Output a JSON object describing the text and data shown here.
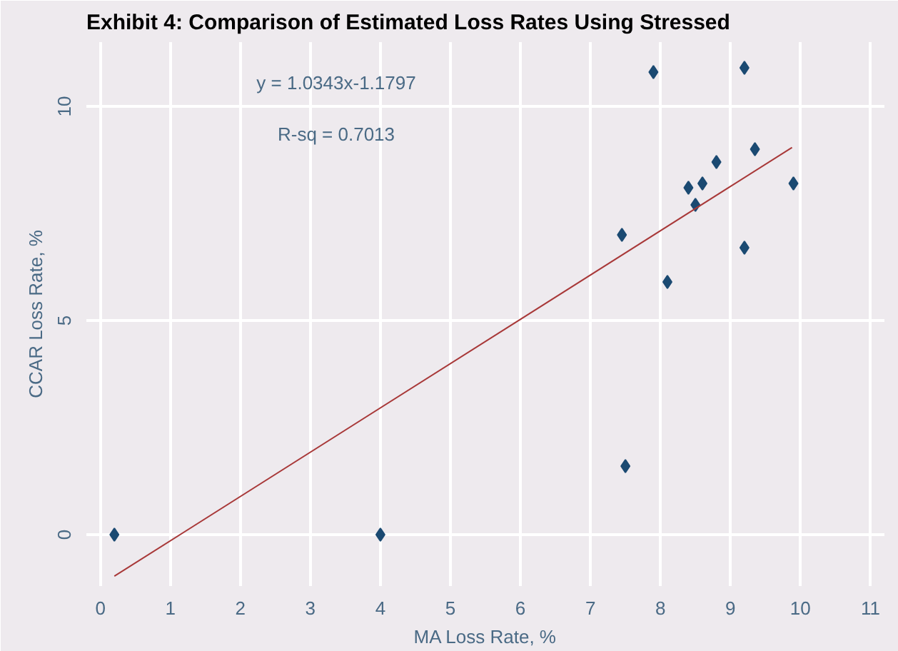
{
  "chart_data": {
    "type": "scatter",
    "title": "Exhibit 4: Comparison of Estimated Loss Rates Using Stressed",
    "xlabel": "MA Loss Rate, %",
    "ylabel": "CCAR Loss Rate, %",
    "xlim": [
      -0.2,
      11.2
    ],
    "ylim": [
      -1.2,
      11.5
    ],
    "xticks": [
      0,
      1,
      2,
      3,
      4,
      5,
      6,
      7,
      8,
      9,
      10,
      11
    ],
    "yticks": [
      0,
      5,
      10
    ],
    "grid": true,
    "series": [
      {
        "marker": "diamond",
        "color": "#1b4a72",
        "x": [
          0.2,
          4.0,
          7.9,
          9.2,
          9.35,
          8.8,
          8.4,
          8.6,
          8.5,
          9.9,
          7.45,
          8.1,
          9.2,
          7.5
        ],
        "values": [
          0,
          0,
          10.8,
          10.9,
          9.0,
          8.7,
          8.1,
          8.2,
          7.7,
          8.2,
          7.0,
          5.9,
          6.7,
          1.6
        ]
      },
      {
        "type": "line",
        "color": "#a83838",
        "x": [
          0.2,
          9.88
        ],
        "values": [
          -0.97,
          9.04
        ]
      }
    ],
    "annotations": [
      "y = 1.0343x-1.1797",
      "R-sq = 0.7013"
    ]
  }
}
